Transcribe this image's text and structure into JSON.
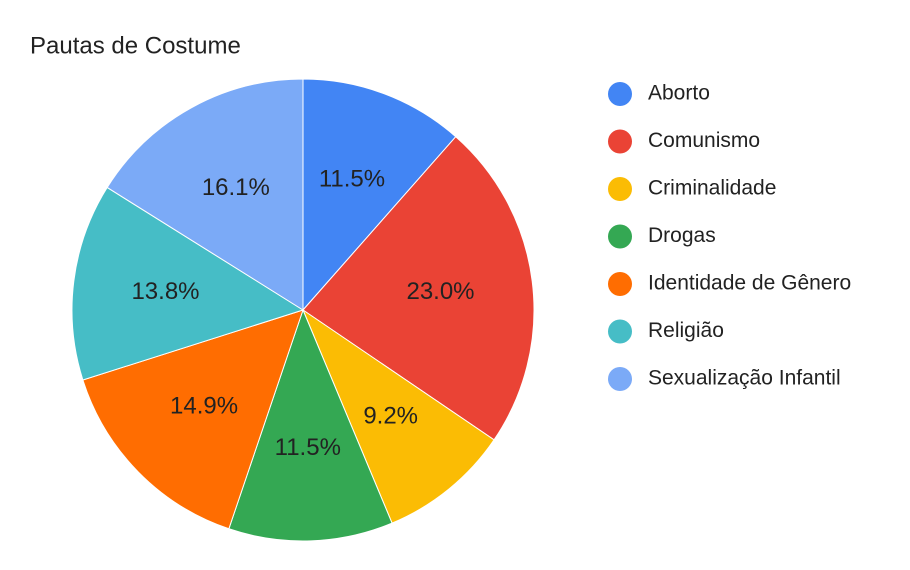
{
  "chart_data": {
    "type": "pie",
    "title": "Pautas de Costume",
    "categories": [
      "Aborto",
      "Comunismo",
      "Criminalidade",
      "Drogas",
      "Identidade de Gênero",
      "Religião",
      "Sexualização Infantil"
    ],
    "values": [
      11.5,
      23.0,
      9.2,
      11.5,
      14.9,
      13.8,
      16.1
    ],
    "value_labels": [
      "11.5%",
      "23.0%",
      "9.2%",
      "11.5%",
      "14.9%",
      "13.8%",
      "16.1%"
    ],
    "colors": [
      "#4285f4",
      "#ea4335",
      "#fbbc04",
      "#34a853",
      "#ff6d01",
      "#46bdc6",
      "#7baaf7"
    ],
    "legend": "right"
  }
}
